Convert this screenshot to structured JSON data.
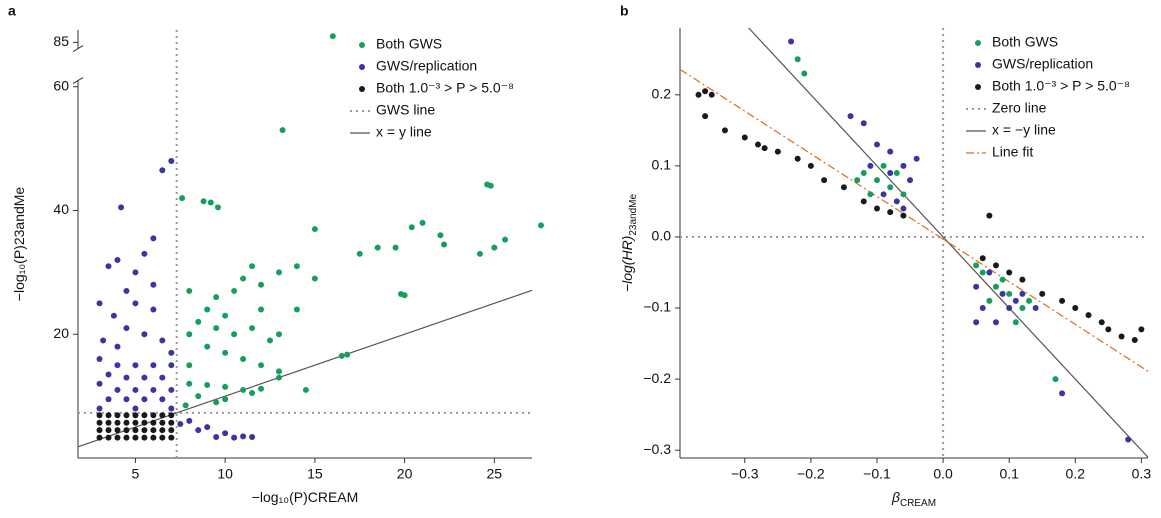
{
  "chart_data": [
    {
      "type": "scatter",
      "panel": "a",
      "xlabel": {
        "text": "−log₁₀(P)CREAM"
      },
      "ylabel": {
        "text": "−log₁₀(P)23andMe"
      },
      "xlim": [
        1.8,
        27.1
      ],
      "xticks": [
        5,
        10,
        15,
        20,
        25
      ],
      "ylim": [
        0,
        87
      ],
      "ybreak": [
        61,
        84
      ],
      "yticks": [
        20,
        40,
        60,
        85
      ],
      "legend": "upper right",
      "series": [
        {
          "name": "Both GWS",
          "color": "#14a05c",
          "x": [
            16,
            13.2,
            7.6,
            8.8,
            9.2,
            9.6,
            24.8,
            24.6,
            27.6,
            21,
            20.4,
            22,
            22.2,
            25.6,
            25,
            24.2,
            19.5,
            18.5,
            17.5,
            15,
            14,
            13,
            11.5,
            11,
            12,
            10.5,
            9.5,
            8,
            20,
            19.8,
            8.5,
            9.5,
            10.5,
            11.5,
            12.5,
            9,
            10,
            11,
            8,
            12,
            13,
            16.5,
            16.8,
            8,
            9,
            10,
            11,
            12,
            13,
            14.5,
            8.5,
            9.5,
            7.8,
            10,
            11.5,
            8,
            9,
            13,
            15,
            14,
            12,
            10
          ],
          "values": [
            86,
            53,
            42,
            41.5,
            41.3,
            40.5,
            44,
            44.2,
            37.6,
            38,
            37.3,
            36,
            34.5,
            35.3,
            34,
            33,
            34,
            34,
            33,
            37,
            31,
            30,
            31,
            29,
            28,
            27,
            26,
            27,
            26.3,
            26.5,
            22,
            21,
            20,
            21,
            19,
            18,
            17,
            16,
            15,
            15,
            14,
            16.5,
            16.7,
            12,
            11.8,
            11.5,
            11,
            11.2,
            13,
            11,
            10,
            9,
            8.5,
            9.5,
            10.5,
            20,
            24,
            20,
            29,
            24,
            24,
            23
          ]
        },
        {
          "name": "GWS/replication",
          "color": "#3b35a0",
          "x": [
            7,
            6.5,
            4.2,
            6,
            5.5,
            4,
            3.5,
            5,
            6,
            4.5,
            3,
            5,
            6,
            3.8,
            4.5,
            5.5,
            3.2,
            6.5,
            4,
            7,
            3,
            4,
            5,
            6,
            7,
            3.5,
            4.5,
            5.5,
            6.5,
            3,
            4,
            5,
            6,
            7,
            3.5,
            4.5,
            5.5,
            6.5,
            3,
            5,
            7,
            8,
            9,
            10,
            11,
            9.5,
            10.5,
            8.5,
            7.5,
            11.5
          ],
          "values": [
            48,
            46.5,
            40.5,
            35.5,
            33,
            32,
            31,
            30,
            28,
            27,
            25,
            25,
            24,
            23,
            21,
            20,
            19,
            19,
            18,
            17,
            16,
            15,
            15,
            15,
            15,
            13.5,
            13,
            13,
            13,
            12,
            11,
            11,
            11,
            11,
            9.5,
            9.5,
            9.5,
            9.5,
            8,
            8,
            8,
            6,
            5,
            4,
            3.5,
            3.4,
            3.3,
            4.5,
            5.5,
            3.4
          ]
        },
        {
          "name": "Both 1.0⁻³ > P > 5.0⁻⁸",
          "color": "#1a1a1a",
          "x": [
            3,
            3.5,
            4,
            4.5,
            5,
            5.5,
            6,
            6.5,
            7,
            3,
            3.5,
            4,
            4.5,
            5,
            5.5,
            6,
            6.5,
            7,
            3,
            3.5,
            4,
            4.5,
            5,
            5.5,
            6,
            6.5,
            7,
            3,
            3.5,
            4,
            4.5,
            5,
            5.5,
            6,
            6.5,
            7
          ],
          "values": [
            3.3,
            3.3,
            3.3,
            3.3,
            3.3,
            3.3,
            3.3,
            3.3,
            3.3,
            4.5,
            4.5,
            4.5,
            4.5,
            4.5,
            4.5,
            4.5,
            4.5,
            4.5,
            5.7,
            5.7,
            5.7,
            5.7,
            5.7,
            5.7,
            5.7,
            5.7,
            5.7,
            6.9,
            6.9,
            6.9,
            6.9,
            6.9,
            6.9,
            6.9,
            6.9,
            6.9
          ]
        }
      ],
      "lines": [
        {
          "name": "GWS line",
          "style": "dotted",
          "color": "#999999",
          "x": 7.3,
          "y": 7.3
        },
        {
          "name": "x = y line",
          "style": "solid",
          "color": "#555555",
          "slope": 1,
          "intercept": 0
        }
      ]
    },
    {
      "type": "scatter",
      "panel": "b",
      "xlabel": {
        "text": "β",
        "sub": "CREAM"
      },
      "ylabel": {
        "text": "−log(HR)",
        "sub": "23andMe"
      },
      "xlim": [
        -0.398,
        0.31
      ],
      "xticks": [
        {
          "value": -0.3,
          "label": "−0.3"
        },
        {
          "value": -0.2,
          "label": "−0.2"
        },
        {
          "value": -0.1,
          "label": "−0.1"
        },
        {
          "value": 0,
          "label": "0.0"
        },
        0.1,
        0.2,
        0.3
      ],
      "ylim": [
        -0.311,
        0.294
      ],
      "yticks": [
        {
          "value": -0.3,
          "label": "−0.3"
        },
        {
          "value": -0.2,
          "label": "−0.2"
        },
        {
          "value": -0.1,
          "label": "−0.1"
        },
        {
          "value": 0,
          "label": "0.0"
        },
        0.1,
        0.2
      ],
      "legend": "upper right",
      "series": [
        {
          "name": "Both GWS",
          "color": "#14a05c",
          "x": [
            -0.22,
            -0.21,
            0.17,
            -0.12,
            -0.1,
            -0.09,
            -0.08,
            -0.11,
            -0.07,
            -0.13,
            -0.06,
            0.06,
            0.08,
            0.1,
            0.07,
            0.12,
            0.09,
            0.11,
            0.13,
            0.05
          ],
          "values": [
            0.25,
            0.23,
            -0.2,
            0.09,
            0.08,
            0.1,
            0.07,
            0.06,
            0.09,
            0.08,
            0.06,
            -0.05,
            -0.07,
            -0.08,
            -0.09,
            -0.1,
            -0.06,
            -0.12,
            -0.09,
            -0.04
          ]
        },
        {
          "name": "GWS/replication",
          "color": "#3b35a0",
          "x": [
            -0.23,
            -0.14,
            -0.12,
            0.18,
            0.28,
            -0.1,
            -0.08,
            -0.06,
            -0.05,
            -0.09,
            -0.07,
            -0.11,
            -0.04,
            -0.06,
            -0.08,
            0.05,
            0.06,
            0.08,
            0.1,
            0.07,
            0.09,
            0.11,
            0.05,
            0.12,
            0.14
          ],
          "values": [
            0.275,
            0.17,
            0.16,
            -0.22,
            -0.285,
            0.13,
            0.12,
            0.1,
            0.08,
            0.06,
            0.05,
            0.1,
            0.11,
            0.04,
            0.09,
            -0.07,
            -0.1,
            -0.12,
            -0.1,
            -0.05,
            -0.08,
            -0.09,
            -0.12,
            -0.08,
            -0.1
          ]
        },
        {
          "name": "Both 1.0⁻³ > P > 5.0⁻⁸",
          "color": "#1a1a1a",
          "x": [
            -0.37,
            -0.36,
            -0.35,
            -0.36,
            -0.3,
            -0.28,
            -0.25,
            -0.22,
            -0.2,
            -0.18,
            -0.15,
            -0.12,
            -0.1,
            -0.08,
            -0.06,
            0.06,
            0.08,
            0.1,
            0.12,
            0.15,
            0.18,
            0.2,
            0.22,
            0.25,
            0.27,
            0.29,
            0.3,
            0.07,
            -0.33,
            0.24,
            -0.27
          ],
          "values": [
            0.2,
            0.205,
            0.2,
            0.17,
            0.14,
            0.13,
            0.12,
            0.11,
            0.1,
            0.08,
            0.07,
            0.05,
            0.04,
            0.035,
            0.03,
            -0.03,
            -0.04,
            -0.05,
            -0.06,
            -0.08,
            -0.09,
            -0.1,
            -0.11,
            -0.13,
            -0.14,
            -0.145,
            -0.13,
            0.03,
            0.15,
            -0.12,
            0.125
          ]
        }
      ],
      "lines": [
        {
          "name": "Zero line",
          "style": "dotted",
          "color": "#999999",
          "x": 0,
          "y": 0
        },
        {
          "name": "x = −y line",
          "style": "solid",
          "color": "#555555",
          "slope": -1,
          "intercept": 0
        },
        {
          "name": "Line fit",
          "style": "dashdot",
          "color": "#e0691b",
          "slope": -0.6,
          "intercept": -0.003
        }
      ]
    }
  ]
}
